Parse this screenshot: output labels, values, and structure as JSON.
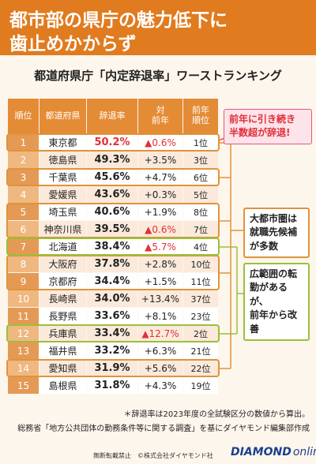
{
  "header": {
    "title_lines": [
      "都市部の県庁の魅力低下に",
      "歯止めかからず"
    ]
  },
  "subtitle": "都道府県庁「内定辞退率」ワーストランキング",
  "table": {
    "columns": [
      [
        "順位"
      ],
      [
        "都道府県"
      ],
      [
        "辞退率"
      ],
      [
        "対",
        "前年"
      ],
      [
        "前年",
        "順位"
      ]
    ],
    "rows": [
      [
        "1",
        "東京都",
        "50.2%",
        "▲0.6%",
        "1位"
      ],
      [
        "2",
        "徳島県",
        "49.3%",
        "+3.5%",
        "3位"
      ],
      [
        "3",
        "千葉県",
        "45.6%",
        "+4.7%",
        "6位"
      ],
      [
        "4",
        "愛媛県",
        "43.6%",
        "+0.3%",
        "5位"
      ],
      [
        "5",
        "埼玉県",
        "40.6%",
        "+1.9%",
        "8位"
      ],
      [
        "6",
        "神奈川県",
        "39.5%",
        "▲0.6%",
        "7位"
      ],
      [
        "7",
        "北海道",
        "38.4%",
        "▲5.7%",
        "4位"
      ],
      [
        "8",
        "大阪府",
        "37.8%",
        "+2.8%",
        "10位"
      ],
      [
        "9",
        "京都府",
        "34.4%",
        "+1.5%",
        "11位"
      ],
      [
        "10",
        "長崎県",
        "34.0%",
        "+13.4%",
        "37位"
      ],
      [
        "11",
        "長野県",
        "33.6%",
        "+8.1%",
        "23位"
      ],
      [
        "12",
        "兵庫県",
        "33.4%",
        "▲12.7%",
        "2位"
      ],
      [
        "13",
        "福井県",
        "33.2%",
        "+6.3%",
        "21位"
      ],
      [
        "14",
        "愛知県",
        "31.9%",
        "+5.6%",
        "22位"
      ],
      [
        "15",
        "島根県",
        "31.8%",
        "+4.3%",
        "19位"
      ]
    ]
  },
  "callouts": [
    {
      "lines": [
        "前年に引き続き",
        "半数超が辞退!"
      ]
    },
    {
      "lines": [
        "大都市圏は",
        "就職先候補",
        "が多数"
      ]
    },
    {
      "lines": [
        "広範囲の転",
        "勤があるが、",
        "前年から改",
        "善"
      ]
    }
  ],
  "notes": [
    "＊辞退率は2023年度の全試験区分の数値から算出。",
    "総務省「地方公共団体の勤務条件等に関する調査」を基にダイヤモンド編集部作成"
  ],
  "footer": {
    "copyright": "無断転載禁止　©株式会社ダイヤモンド社",
    "brand": "DIAMOND",
    "brand_suffix": "online"
  }
}
